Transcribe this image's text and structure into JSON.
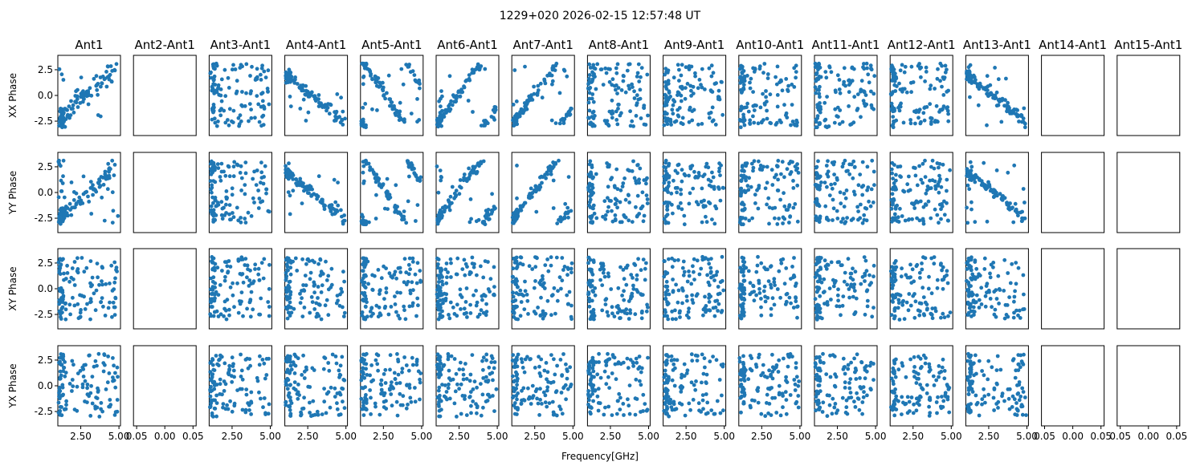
{
  "chart_data": {
    "type": "scatter",
    "suptitle": "1229+020 2026-02-15 12:57:48 UT",
    "xlabel": "Frequency[GHz]",
    "columns": [
      "Ant1",
      "Ant2-Ant1",
      "Ant3-Ant1",
      "Ant4-Ant1",
      "Ant5-Ant1",
      "Ant6-Ant1",
      "Ant7-Ant1",
      "Ant8-Ant1",
      "Ant9-Ant1",
      "Ant10-Ant1",
      "Ant11-Ant1",
      "Ant12-Ant1",
      "Ant13-Ant1",
      "Ant14-Ant1",
      "Ant15-Ant1"
    ],
    "rows": [
      "XX Phase",
      "YY Phase",
      "XY Phase",
      "YX Phase"
    ],
    "xlim": [
      1.0,
      5.1
    ],
    "ylim": [
      -3.9,
      3.9
    ],
    "xticks": [
      "2.50",
      "5.00"
    ],
    "xticks_empty": [
      "0.05",
      "0.00",
      "0.05"
    ],
    "yticks": [
      "2.5",
      "0.0",
      "-2.5"
    ],
    "empty_columns": [
      1,
      13,
      14
    ],
    "marker_color": "#1f77b4",
    "points_per_panel": 120,
    "panel_shapes": [
      [
        "wraps",
        "wraps",
        "noise",
        "noise"
      ],
      [
        "empty",
        "empty",
        "empty",
        "empty"
      ],
      [
        "clusters",
        "noise",
        "noise",
        "noise"
      ],
      [
        "descending",
        "descending",
        "noise",
        "noise"
      ],
      [
        "descending-wrap",
        "descending-wrap",
        "noise",
        "noise"
      ],
      [
        "ascending-wrap",
        "ascending-wrap",
        "noise",
        "noise"
      ],
      [
        "ascending-wrap",
        "ascending-wrap",
        "noise",
        "noise"
      ],
      [
        "noise",
        "noise",
        "noise",
        "noise"
      ],
      [
        "noise",
        "clusters",
        "noise",
        "noise"
      ],
      [
        "clusters",
        "clusters",
        "noise",
        "noise"
      ],
      [
        "clusters",
        "clusters",
        "noise",
        "noise"
      ],
      [
        "clusters",
        "clusters",
        "noise",
        "noise"
      ],
      [
        "descending",
        "descending",
        "noise",
        "noise"
      ],
      [
        "empty",
        "empty",
        "empty",
        "empty"
      ],
      [
        "empty",
        "empty",
        "empty",
        "empty"
      ]
    ]
  }
}
